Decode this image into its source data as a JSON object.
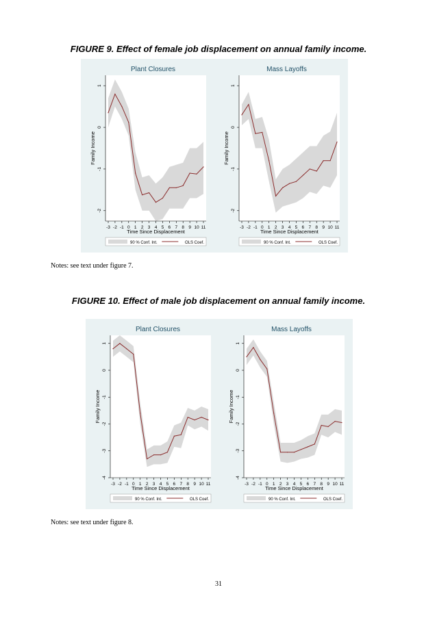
{
  "page": {
    "page_number": "31"
  },
  "figures": [
    {
      "id": "fig9",
      "title": "FIGURE 9. Effect of female job displacement on annual family income.",
      "notes": "Notes: see text under figure 7.",
      "legend": {
        "ci_label": "90 % Conf. Int.",
        "line_label": "OLS Coef."
      },
      "chart_data": [
        {
          "type": "line",
          "title": "Plant Closures",
          "xlabel": "Time Since Displacement",
          "ylabel": "Family Income",
          "x": [
            -3,
            -2,
            -1,
            0,
            1,
            2,
            3,
            4,
            5,
            6,
            7,
            8,
            9,
            10,
            11
          ],
          "xticks": [
            "-3",
            "-2",
            "-1",
            "0",
            "1",
            "2",
            "3",
            "4",
            "5",
            "6",
            "7",
            "8",
            "9",
            "10",
            "11"
          ],
          "yticks": [
            {
              "v": 1,
              "label": "1"
            },
            {
              "v": 0,
              "label": "0"
            },
            {
              "v": -1,
              "label": "-1"
            },
            {
              "v": -2,
              "label": "-2"
            }
          ],
          "ylim": [
            -2.25,
            1.25
          ],
          "series": [
            {
              "name": "OLS Coef.",
              "values": [
                0.35,
                0.8,
                0.5,
                0.12,
                -1.1,
                -1.62,
                -1.57,
                -1.8,
                -1.7,
                -1.45,
                -1.45,
                -1.4,
                -1.1,
                -1.12,
                -0.95
              ]
            },
            {
              "name": "90 % Conf. Int. lower",
              "values": [
                0.0,
                0.5,
                0.2,
                -0.2,
                -1.5,
                -2.0,
                -2.0,
                -2.25,
                -2.2,
                -1.95,
                -1.95,
                -1.95,
                -1.7,
                -1.7,
                -1.6
              ]
            },
            {
              "name": "90 % Conf. Int. upper",
              "values": [
                0.7,
                1.15,
                0.85,
                0.45,
                -0.6,
                -1.2,
                -1.15,
                -1.35,
                -1.2,
                -0.95,
                -0.9,
                -0.85,
                -0.5,
                -0.5,
                -0.35
              ]
            }
          ]
        },
        {
          "type": "line",
          "title": "Mass Layoffs",
          "xlabel": "Time Since Displacement",
          "ylabel": "Family Income",
          "x": [
            -3,
            -2,
            -1,
            0,
            1,
            2,
            3,
            4,
            5,
            6,
            7,
            8,
            9,
            10,
            11
          ],
          "xticks": [
            "-3",
            "-2",
            "-1",
            "0",
            "1",
            "2",
            "3",
            "4",
            "5",
            "6",
            "7",
            "8",
            "9",
            "10",
            "11"
          ],
          "yticks": [
            {
              "v": 1,
              "label": "1"
            },
            {
              "v": 0,
              "label": "0"
            },
            {
              "v": -1,
              "label": "-1"
            },
            {
              "v": -2,
              "label": "-2"
            }
          ],
          "ylim": [
            -2.25,
            1.25
          ],
          "series": [
            {
              "name": "OLS Coef.",
              "values": [
                0.3,
                0.55,
                -0.15,
                -0.12,
                -0.8,
                -1.65,
                -1.45,
                -1.35,
                -1.3,
                -1.15,
                -1.0,
                -1.05,
                -0.8,
                -0.8,
                -0.35
              ]
            },
            {
              "name": "90 % Conf. Int. lower",
              "values": [
                0.05,
                0.2,
                -0.5,
                -0.5,
                -1.3,
                -2.05,
                -1.9,
                -1.85,
                -1.8,
                -1.7,
                -1.55,
                -1.6,
                -1.4,
                -1.45,
                -1.15
              ]
            },
            {
              "name": "90 % Conf. Int. upper",
              "values": [
                0.55,
                0.85,
                0.2,
                0.25,
                -0.3,
                -1.25,
                -1.0,
                -0.9,
                -0.75,
                -0.6,
                -0.45,
                -0.45,
                -0.2,
                -0.1,
                0.35
              ]
            }
          ]
        }
      ]
    },
    {
      "id": "fig10",
      "title": "FIGURE 10. Effect of male job displacement on annual family income.",
      "notes": "Notes: see text under figure 8.",
      "legend": {
        "ci_label": "90 % Conf. Int.",
        "line_label": "OLS Coef."
      },
      "chart_data": [
        {
          "type": "line",
          "title": "Plant Closures",
          "xlabel": "Time Since Displacement",
          "ylabel": "Family Income",
          "x": [
            -3,
            -2,
            -1,
            0,
            1,
            2,
            3,
            4,
            5,
            6,
            7,
            8,
            9,
            10,
            11
          ],
          "xticks": [
            "-3",
            "-2",
            "-1",
            "0",
            "1",
            "2",
            "3",
            "4",
            "5",
            "6",
            "7",
            "8",
            "9",
            "10",
            "11"
          ],
          "yticks": [
            {
              "v": 1,
              "label": "1"
            },
            {
              "v": 0,
              "label": "0"
            },
            {
              "v": -1,
              "label": "-1"
            },
            {
              "v": -2,
              "label": "-2"
            },
            {
              "v": -3,
              "label": "-3"
            },
            {
              "v": -4,
              "label": "-4"
            }
          ],
          "ylim": [
            -4,
            1.3
          ],
          "series": [
            {
              "name": "OLS Coef.",
              "values": [
                0.8,
                1.0,
                0.8,
                0.6,
                -1.6,
                -3.3,
                -3.15,
                -3.15,
                -3.05,
                -2.45,
                -2.4,
                -1.75,
                -1.85,
                -1.75,
                -1.85
              ]
            },
            {
              "name": "90 % Conf. Int. lower",
              "values": [
                0.5,
                0.7,
                0.5,
                0.3,
                -2.0,
                -3.6,
                -3.5,
                -3.5,
                -3.45,
                -2.85,
                -2.9,
                -2.05,
                -2.2,
                -2.1,
                -2.25
              ]
            },
            {
              "name": "90 % Conf. Int. upper",
              "values": [
                1.1,
                1.3,
                1.1,
                0.9,
                -1.2,
                -2.95,
                -2.8,
                -2.8,
                -2.65,
                -2.05,
                -1.95,
                -1.4,
                -1.5,
                -1.35,
                -1.45
              ]
            }
          ]
        },
        {
          "type": "line",
          "title": "Mass Layoffs",
          "xlabel": "Time Since Displacement",
          "ylabel": "Family Income",
          "x": [
            -3,
            -2,
            -1,
            0,
            1,
            2,
            3,
            4,
            5,
            6,
            7,
            8,
            9,
            10,
            11
          ],
          "xticks": [
            "-3",
            "-2",
            "-1",
            "0",
            "1",
            "2",
            "3",
            "4",
            "5",
            "6",
            "7",
            "8",
            "9",
            "10",
            "11"
          ],
          "yticks": [
            {
              "v": 1,
              "label": "1"
            },
            {
              "v": 0,
              "label": "0"
            },
            {
              "v": -1,
              "label": "-1"
            },
            {
              "v": -2,
              "label": "-2"
            },
            {
              "v": -3,
              "label": "-3"
            },
            {
              "v": -4,
              "label": "-4"
            }
          ],
          "ylim": [
            -4,
            1.3
          ],
          "series": [
            {
              "name": "OLS Coef.",
              "values": [
                0.5,
                0.85,
                0.4,
                0.05,
                -1.6,
                -3.05,
                -3.05,
                -3.05,
                -2.95,
                -2.85,
                -2.75,
                -2.05,
                -2.1,
                -1.9,
                -1.95
              ]
            },
            {
              "name": "90 % Conf. Int. lower",
              "values": [
                0.2,
                0.55,
                0.1,
                -0.25,
                -2.0,
                -3.4,
                -3.45,
                -3.4,
                -3.3,
                -3.25,
                -3.15,
                -2.4,
                -2.5,
                -2.3,
                -2.4
              ]
            },
            {
              "name": "90 % Conf. Int. upper",
              "values": [
                0.8,
                1.15,
                0.7,
                0.35,
                -1.2,
                -2.7,
                -2.7,
                -2.7,
                -2.6,
                -2.45,
                -2.35,
                -1.65,
                -1.65,
                -1.45,
                -1.5
              ]
            }
          ]
        }
      ]
    }
  ],
  "colors": {
    "panel_background": "#eaf2f3",
    "plot_background": "#ffffff",
    "ci_band": "#d9d9d9",
    "coef_line": "#8a2b2b",
    "title_text": "#1f4f66",
    "axis_text": "#000000"
  }
}
